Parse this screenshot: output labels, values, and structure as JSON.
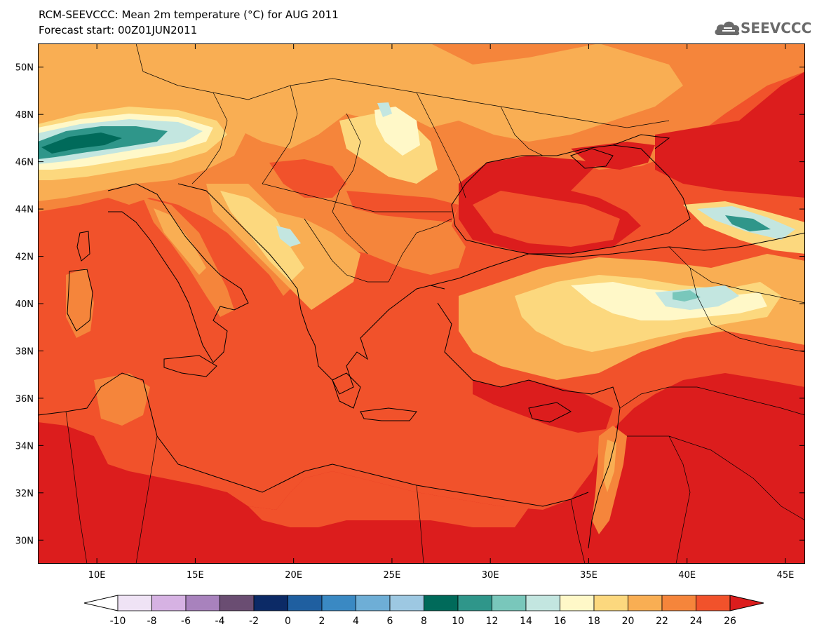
{
  "header": {
    "title": "RCM-SEEVCCC: Mean 2m temperature (°C) for AUG 2011",
    "subtitle": "Forecast start: 00Z01JUN2011",
    "logo_text": "SEEVCCC"
  },
  "map": {
    "lon_range": [
      7,
      46
    ],
    "lat_range": [
      29,
      51
    ],
    "lon_ticks": [
      {
        "value": 10,
        "label": "10E"
      },
      {
        "value": 15,
        "label": "15E"
      },
      {
        "value": 20,
        "label": "20E"
      },
      {
        "value": 25,
        "label": "25E"
      },
      {
        "value": 30,
        "label": "30E"
      },
      {
        "value": 35,
        "label": "35E"
      },
      {
        "value": 40,
        "label": "40E"
      },
      {
        "value": 45,
        "label": "45E"
      }
    ],
    "lat_ticks": [
      {
        "value": 30,
        "label": "30N"
      },
      {
        "value": 32,
        "label": "32N"
      },
      {
        "value": 34,
        "label": "34N"
      },
      {
        "value": 36,
        "label": "36N"
      },
      {
        "value": 38,
        "label": "38N"
      },
      {
        "value": 40,
        "label": "40N"
      },
      {
        "value": 42,
        "label": "42N"
      },
      {
        "value": 44,
        "label": "44N"
      },
      {
        "value": 46,
        "label": "46N"
      },
      {
        "value": 48,
        "label": "48N"
      },
      {
        "value": 50,
        "label": "50N"
      }
    ]
  },
  "colorbar": {
    "labels": [
      "-10",
      "-8",
      "-6",
      "-4",
      "-2",
      "0",
      "2",
      "4",
      "6",
      "8",
      "10",
      "12",
      "14",
      "16",
      "18",
      "20",
      "22",
      "24",
      "26"
    ],
    "colors": [
      "#ffffff",
      "#efe3f5",
      "#d6b2e3",
      "#a882bd",
      "#6a4d72",
      "#0c2a66",
      "#1f5fa0",
      "#3a89c3",
      "#6eaed6",
      "#9dc8e2",
      "#006a5a",
      "#2f968a",
      "#79c7bb",
      "#c3e6e0",
      "#fff8c8",
      "#fcd87e",
      "#f9ae53",
      "#f5853b",
      "#f1522b",
      "#dc1d1d"
    ]
  }
}
